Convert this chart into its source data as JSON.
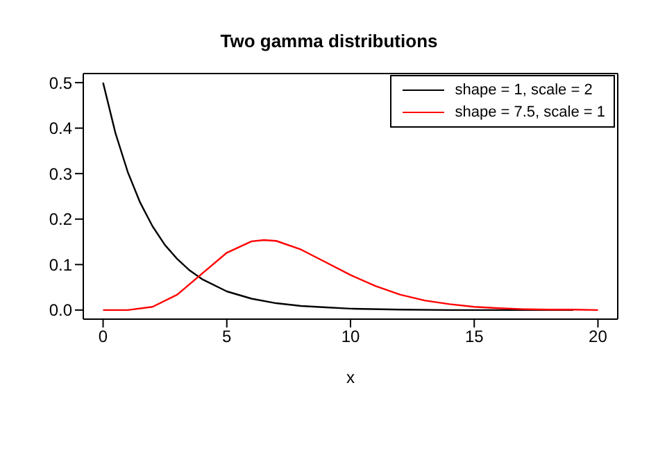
{
  "chart_data": {
    "type": "line",
    "title": "Two gamma distributions",
    "xlabel": "x",
    "xlim": [
      -0.8,
      20.8
    ],
    "xticks": [
      0,
      5,
      10,
      15,
      20
    ],
    "ylim": [
      -0.02,
      0.52
    ],
    "yticks": [
      {
        "value": 0,
        "label": "0.0"
      },
      {
        "value": 0.1,
        "label": "0.1"
      },
      {
        "value": 0.2,
        "label": "0.2"
      },
      {
        "value": 0.3,
        "label": "0.3"
      },
      {
        "value": 0.4,
        "label": "0.4"
      },
      {
        "value": 0.5,
        "label": "0.5"
      }
    ],
    "legend": "top right",
    "marker": "none",
    "line_style": "solid",
    "series": [
      {
        "name": "shape = 1, scale = 2",
        "color": "#000000",
        "x": [
          0,
          0.5,
          1,
          1.5,
          2,
          2.5,
          3,
          3.5,
          4,
          5,
          6,
          7,
          8,
          9,
          10,
          12,
          14,
          16,
          19
        ],
        "values": [
          0.5,
          0.389,
          0.303,
          0.236,
          0.184,
          0.143,
          0.112,
          0.087,
          0.068,
          0.041,
          0.025,
          0.015,
          0.009,
          0.006,
          0.003,
          0.001,
          0,
          0,
          0
        ]
      },
      {
        "name": "shape = 7.5, scale = 1",
        "color": "#ff0000",
        "x": [
          0,
          1,
          2,
          3,
          4,
          5,
          6,
          6.5,
          7,
          8,
          9,
          10,
          11,
          12,
          13,
          14,
          15,
          16,
          17,
          18,
          19,
          20
        ],
        "values": [
          0,
          0,
          0.007,
          0.034,
          0.08,
          0.126,
          0.151,
          0.154,
          0.152,
          0.133,
          0.105,
          0.077,
          0.053,
          0.034,
          0.021,
          0.013,
          0.007,
          0.004,
          0.002,
          0.001,
          0.001,
          0
        ]
      }
    ]
  }
}
